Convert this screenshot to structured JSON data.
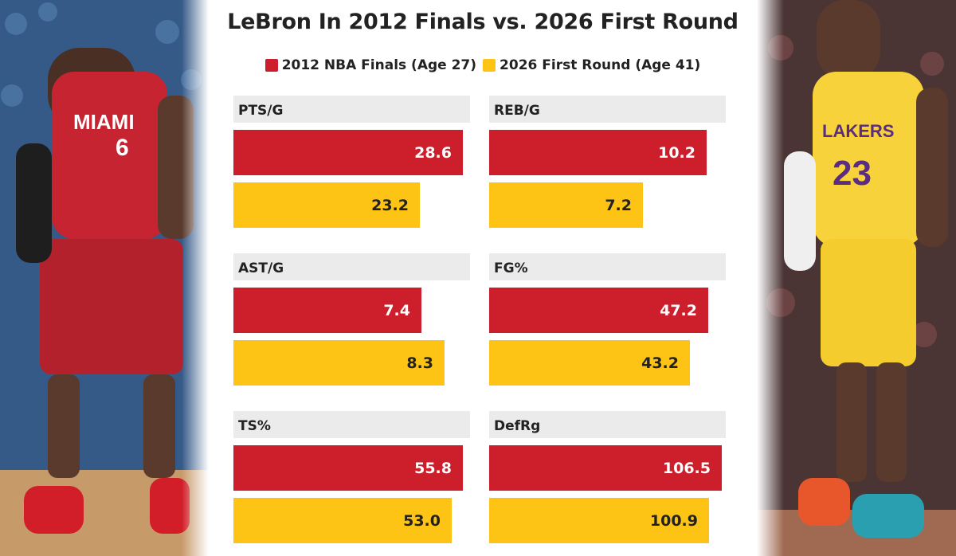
{
  "chart_data": {
    "type": "bar",
    "title": "LeBron In 2012 Finals vs. 2026 First Round",
    "series": [
      {
        "name": "2012 NBA Finals (Age 27)",
        "color": "#cc1e2b"
      },
      {
        "name": "2026 First Round (Age 41)",
        "color": "#fdc315"
      }
    ],
    "panels": [
      {
        "label": "PTS/G",
        "values": [
          "28.6",
          "23.2"
        ],
        "max": 29.5
      },
      {
        "label": "REB/G",
        "values": [
          "10.2",
          "7.2"
        ],
        "max": 11.1
      },
      {
        "label": "AST/G",
        "values": [
          "7.4",
          "8.3"
        ],
        "max": 9.3
      },
      {
        "label": "FG%",
        "values": [
          "47.2",
          "43.2"
        ],
        "max": 51
      },
      {
        "label": "TS%",
        "values": [
          "55.8",
          "53.0"
        ],
        "max": 57.5
      },
      {
        "label": "DefRg",
        "values": [
          "106.5",
          "100.9"
        ],
        "max": 108.5
      }
    ]
  },
  "photos": {
    "left": "player-photo-miami-heat-6",
    "right": "player-photo-lakers-23"
  }
}
